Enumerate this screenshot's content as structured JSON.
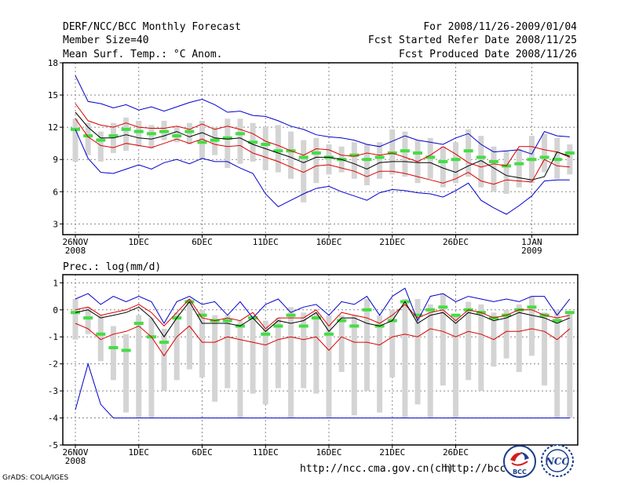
{
  "header": {
    "title": "DERF/NCC/BCC Monthly Forecast",
    "member_size": "Member Size=40",
    "period": "For 2008/11/26-2009/01/04",
    "start_date": "Fcst Started Refer Date 2008/11/25",
    "produced_date": "Fcst Produced Date 2008/11/26"
  },
  "footer": {
    "url_ncc": "http://ncc.cma.gov.cn(ch)",
    "url_bcc": "http://bcc.c",
    "credit": "GrADS: COLA/IGES",
    "logo_bcc_text": "BCC",
    "logo_ncc_text": "NCC"
  },
  "colors": {
    "ensemble_max_min": "#0000cc",
    "ensemble_spread": "#dd0000",
    "ensemble_mean": "#000000",
    "member_box": "#d4d4d4",
    "median_bar": "#44dd44",
    "grid": "#888888"
  },
  "chart_data": [
    {
      "type": "line",
      "title": "Mean Surf. Temp.: °C Anom.",
      "ylim": [
        2,
        18
      ],
      "yticks": [
        3,
        6,
        9,
        12,
        15,
        18
      ],
      "ytick_labels": [
        "3",
        "6",
        "9",
        "12",
        "15",
        "18"
      ],
      "xlabel_ticks": [
        "26NOV",
        "1DEC",
        "6DEC",
        "11DEC",
        "16DEC",
        "21DEC",
        "26DEC",
        "1JAN"
      ],
      "xlabel_tick_days": [
        0,
        5,
        10,
        15,
        20,
        25,
        30,
        36
      ],
      "year_labels": [
        {
          "day": 0,
          "label": "2008"
        },
        {
          "day": 36,
          "label": "2009"
        }
      ],
      "days": [
        0,
        1,
        2,
        3,
        4,
        5,
        6,
        7,
        8,
        9,
        10,
        11,
        12,
        13,
        14,
        15,
        16,
        17,
        18,
        19,
        20,
        21,
        22,
        23,
        24,
        25,
        26,
        27,
        28,
        29,
        30,
        31,
        32,
        33,
        34,
        35,
        36,
        37,
        38,
        39
      ],
      "series": [
        {
          "name": "max",
          "values": [
            16.8,
            14.4,
            14.2,
            13.8,
            14.1,
            13.6,
            13.9,
            13.5,
            13.9,
            14.3,
            14.6,
            14.1,
            13.4,
            13.5,
            13.1,
            13.0,
            12.6,
            12.1,
            11.8,
            11.3,
            11.1,
            11.0,
            10.8,
            10.4,
            10.2,
            10.7,
            11.2,
            10.8,
            10.6,
            10.4,
            11.0,
            11.4,
            10.4,
            9.7,
            9.8,
            9.9,
            9.5,
            11.6,
            11.2,
            11.1
          ]
        },
        {
          "name": "upper",
          "values": [
            14.2,
            12.6,
            12.2,
            12.0,
            12.4,
            12.0,
            11.9,
            11.9,
            12.1,
            11.8,
            12.3,
            11.8,
            12.1,
            11.8,
            11.4,
            10.7,
            10.3,
            9.8,
            9.4,
            10.0,
            9.9,
            9.4,
            9.3,
            9.6,
            9.4,
            9.6,
            9.2,
            8.8,
            9.4,
            10.2,
            9.5,
            8.7,
            8.3,
            8.6,
            8.4,
            10.2,
            10.2,
            9.9,
            9.7,
            9.2
          ]
        },
        {
          "name": "mean",
          "values": [
            13.4,
            12.0,
            11.0,
            11.0,
            11.3,
            11.0,
            10.9,
            11.2,
            11.6,
            11.1,
            11.5,
            11.0,
            10.9,
            11.0,
            10.4,
            10.0,
            9.6,
            9.2,
            8.7,
            9.2,
            9.2,
            9.0,
            8.6,
            8.1,
            8.7,
            8.8,
            8.8,
            8.7,
            8.7,
            8.2,
            7.8,
            8.4,
            8.9,
            8.2,
            7.5,
            7.3,
            7.1,
            7.4,
            9.7,
            9.3
          ]
        },
        {
          "name": "lower",
          "values": [
            12.8,
            11.1,
            10.3,
            10.1,
            10.5,
            10.3,
            10.1,
            10.5,
            10.9,
            10.5,
            10.9,
            10.4,
            10.2,
            10.3,
            9.6,
            9.2,
            8.8,
            8.3,
            7.8,
            8.4,
            8.5,
            8.2,
            7.9,
            7.4,
            7.9,
            7.9,
            7.7,
            7.4,
            7.1,
            6.8,
            7.2,
            7.8,
            7.0,
            6.7,
            7.1,
            7.0,
            6.9,
            9.0,
            8.4,
            8.3
          ]
        },
        {
          "name": "min",
          "values": [
            11.8,
            9.1,
            7.8,
            7.7,
            8.1,
            8.5,
            8.1,
            8.7,
            9.0,
            8.6,
            9.1,
            8.8,
            8.8,
            8.2,
            7.7,
            5.8,
            4.6,
            5.2,
            5.8,
            6.3,
            6.5,
            6.0,
            5.6,
            5.2,
            5.9,
            6.2,
            6.1,
            5.9,
            5.8,
            5.5,
            6.1,
            6.8,
            5.2,
            4.5,
            3.9,
            4.7,
            5.6,
            7.0,
            7.1,
            7.1
          ]
        }
      ],
      "boxes": [
        [
          8.8,
          12.8,
          11.8
        ],
        [
          9.4,
          12.4,
          11.2
        ],
        [
          8.8,
          11.6,
          10.8
        ],
        [
          9.6,
          12.4,
          11.2
        ],
        [
          9.8,
          12.9,
          11.8
        ],
        [
          10.2,
          12.6,
          11.6
        ],
        [
          10.0,
          12.2,
          11.4
        ],
        [
          10.8,
          12.6,
          11.6
        ],
        [
          10.6,
          12.0,
          11.2
        ],
        [
          10.4,
          12.4,
          11.6
        ],
        [
          9.0,
          12.6,
          10.6
        ],
        [
          9.4,
          12.0,
          10.8
        ],
        [
          8.2,
          12.8,
          11.0
        ],
        [
          8.6,
          12.8,
          11.4
        ],
        [
          8.8,
          12.4,
          10.6
        ],
        [
          8.0,
          12.0,
          10.4
        ],
        [
          7.8,
          12.2,
          9.8
        ],
        [
          7.2,
          11.6,
          9.8
        ],
        [
          5.0,
          10.8,
          9.2
        ],
        [
          6.8,
          11.0,
          9.6
        ],
        [
          7.6,
          10.4,
          9.2
        ],
        [
          7.8,
          10.2,
          9.0
        ],
        [
          7.2,
          10.6,
          9.4
        ],
        [
          6.6,
          10.4,
          9.0
        ],
        [
          7.2,
          10.6,
          9.2
        ],
        [
          7.6,
          11.8,
          9.6
        ],
        [
          7.4,
          11.6,
          9.8
        ],
        [
          6.8,
          10.8,
          9.6
        ],
        [
          7.2,
          11.0,
          9.2
        ],
        [
          6.4,
          10.2,
          8.8
        ],
        [
          6.8,
          10.6,
          9.0
        ],
        [
          7.4,
          11.8,
          9.8
        ],
        [
          6.4,
          11.2,
          9.2
        ],
        [
          6.0,
          10.2,
          8.8
        ],
        [
          5.8,
          9.8,
          8.4
        ],
        [
          6.4,
          10.0,
          8.6
        ],
        [
          6.8,
          11.2,
          9.0
        ],
        [
          7.8,
          11.4,
          9.2
        ],
        [
          7.2,
          11.0,
          9.0
        ],
        [
          7.6,
          10.4,
          9.6
        ]
      ]
    },
    {
      "type": "line",
      "title": "Prec.: log(mm/d)",
      "ylim": [
        -5,
        1.3
      ],
      "yticks": [
        -5,
        -4,
        -3,
        -2,
        -1,
        0,
        1
      ],
      "ytick_labels": [
        "-5",
        "-4",
        "-3",
        "-2",
        "-1",
        "0",
        "1"
      ],
      "xlabel_ticks": [
        "26NOV",
        "1DEC",
        "6DEC",
        "11DEC",
        "16DEC",
        "21DEC",
        "26DEC"
      ],
      "xlabel_tick_days": [
        0,
        5,
        10,
        15,
        20,
        25,
        30
      ],
      "year_labels": [
        {
          "day": 0,
          "label": "2008"
        }
      ],
      "days": [
        0,
        1,
        2,
        3,
        4,
        5,
        6,
        7,
        8,
        9,
        10,
        11,
        12,
        13,
        14,
        15,
        16,
        17,
        18,
        19,
        20,
        21,
        22,
        23,
        24,
        25,
        26,
        27,
        28,
        29,
        30,
        31,
        32,
        33,
        34,
        35,
        36,
        37,
        38,
        39
      ],
      "series": [
        {
          "name": "max",
          "values": [
            0.4,
            0.6,
            0.2,
            0.5,
            0.3,
            0.5,
            0.3,
            -0.5,
            0.3,
            0.5,
            0.2,
            0.3,
            -0.2,
            0.3,
            -0.3,
            0.2,
            0.4,
            -0.1,
            0.1,
            0.2,
            -0.2,
            0.3,
            0.2,
            0.5,
            -0.2,
            0.5,
            0.8,
            -0.4,
            0.5,
            0.6,
            0.3,
            0.5,
            0.4,
            0.3,
            0.4,
            0.3,
            0.5,
            0.5,
            -0.2,
            0.4
          ]
        },
        {
          "name": "upper",
          "values": [
            0.0,
            0.1,
            -0.2,
            -0.1,
            0.0,
            0.2,
            -0.1,
            -0.6,
            -0.1,
            0.4,
            -0.3,
            -0.4,
            -0.3,
            -0.4,
            -0.1,
            -0.7,
            -0.3,
            -0.3,
            -0.3,
            0.0,
            -0.6,
            -0.1,
            -0.2,
            -0.3,
            -0.5,
            -0.2,
            0.2,
            -0.3,
            -0.1,
            0.0,
            -0.4,
            0.0,
            -0.1,
            -0.3,
            -0.2,
            0.0,
            0.0,
            -0.2,
            -0.3,
            -0.2
          ]
        },
        {
          "name": "mean",
          "values": [
            -0.1,
            0.0,
            -0.3,
            -0.2,
            -0.1,
            0.1,
            -0.3,
            -1.0,
            -0.3,
            0.3,
            -0.5,
            -0.5,
            -0.5,
            -0.6,
            -0.3,
            -0.8,
            -0.4,
            -0.5,
            -0.4,
            -0.1,
            -0.8,
            -0.3,
            -0.3,
            -0.5,
            -0.6,
            -0.4,
            0.3,
            -0.5,
            -0.2,
            -0.1,
            -0.5,
            -0.1,
            -0.2,
            -0.4,
            -0.3,
            -0.1,
            -0.2,
            -0.3,
            -0.5,
            -0.3
          ]
        },
        {
          "name": "lower",
          "values": [
            -0.5,
            -0.7,
            -1.1,
            -0.9,
            -0.8,
            -0.6,
            -1.0,
            -1.7,
            -1.0,
            -0.6,
            -1.2,
            -1.2,
            -1.0,
            -1.1,
            -1.2,
            -1.3,
            -1.1,
            -1.0,
            -1.1,
            -1.0,
            -1.5,
            -1.0,
            -1.2,
            -1.2,
            -1.3,
            -1.0,
            -0.9,
            -1.0,
            -0.7,
            -0.8,
            -1.0,
            -0.8,
            -0.9,
            -1.1,
            -0.8,
            -0.8,
            -0.7,
            -0.8,
            -1.1,
            -0.7
          ]
        },
        {
          "name": "min",
          "values": [
            -3.7,
            -2.0,
            -3.5,
            -4.0,
            -4.0,
            -4.0,
            -4.0,
            -4.0,
            -4.0,
            -4.0,
            -4.0,
            -4.0,
            -4.0,
            -4.0,
            -4.0,
            -4.0,
            -4.0,
            -4.0,
            -4.0,
            -4.0,
            -4.0,
            -4.0,
            -4.0,
            -4.0,
            -4.0,
            -4.0,
            -4.0,
            -4.0,
            -4.0,
            -4.0,
            -4.0,
            -4.0,
            -4.0,
            -4.0,
            -4.0,
            -4.0,
            -4.0,
            -4.0,
            -4.0,
            -4.0
          ]
        }
      ],
      "boxes": [
        [
          -1.1,
          0.4,
          -0.1
        ],
        [
          -0.9,
          0.1,
          -0.3
        ],
        [
          -1.9,
          -0.2,
          -0.9
        ],
        [
          -2.6,
          -0.6,
          -1.4
        ],
        [
          -3.8,
          -0.9,
          -1.5
        ],
        [
          -4.0,
          -0.2,
          -0.5
        ],
        [
          -4.0,
          -0.3,
          -1.0
        ],
        [
          -3.0,
          -0.7,
          -1.2
        ],
        [
          -2.6,
          -0.1,
          -0.3
        ],
        [
          -2.2,
          0.4,
          0.3
        ],
        [
          -2.5,
          0.0,
          -0.2
        ],
        [
          -3.4,
          -0.2,
          -0.4
        ],
        [
          -2.9,
          -0.2,
          -0.4
        ],
        [
          -4.0,
          -0.4,
          -0.6
        ],
        [
          -3.1,
          -0.2,
          -0.3
        ],
        [
          -3.5,
          -0.4,
          -0.9
        ],
        [
          -2.9,
          -0.3,
          -0.6
        ],
        [
          -4.0,
          0.1,
          -0.2
        ],
        [
          -2.9,
          -0.1,
          -0.6
        ],
        [
          -3.1,
          -0.1,
          -0.3
        ],
        [
          -4.0,
          -0.2,
          -0.9
        ],
        [
          -2.3,
          -0.2,
          -0.4
        ],
        [
          -3.9,
          -0.2,
          -0.6
        ],
        [
          -3.0,
          0.4,
          0.0
        ],
        [
          -3.8,
          -0.2,
          -0.6
        ],
        [
          -2.5,
          0.0,
          -0.4
        ],
        [
          -4.0,
          0.4,
          0.3
        ],
        [
          -3.5,
          0.4,
          -0.2
        ],
        [
          -4.0,
          0.2,
          0.0
        ],
        [
          -2.8,
          0.6,
          0.1
        ],
        [
          -4.0,
          -0.2,
          -0.2
        ],
        [
          -2.6,
          0.3,
          0.0
        ],
        [
          -3.0,
          0.2,
          -0.1
        ],
        [
          -2.1,
          -0.1,
          -0.3
        ],
        [
          -1.8,
          0.0,
          -0.2
        ],
        [
          -2.3,
          0.2,
          0.0
        ],
        [
          -1.7,
          0.5,
          0.1
        ],
        [
          -2.8,
          -0.1,
          -0.2
        ],
        [
          -4.0,
          0.0,
          -0.4
        ],
        [
          -4.0,
          -0.1,
          -0.1
        ]
      ]
    }
  ]
}
